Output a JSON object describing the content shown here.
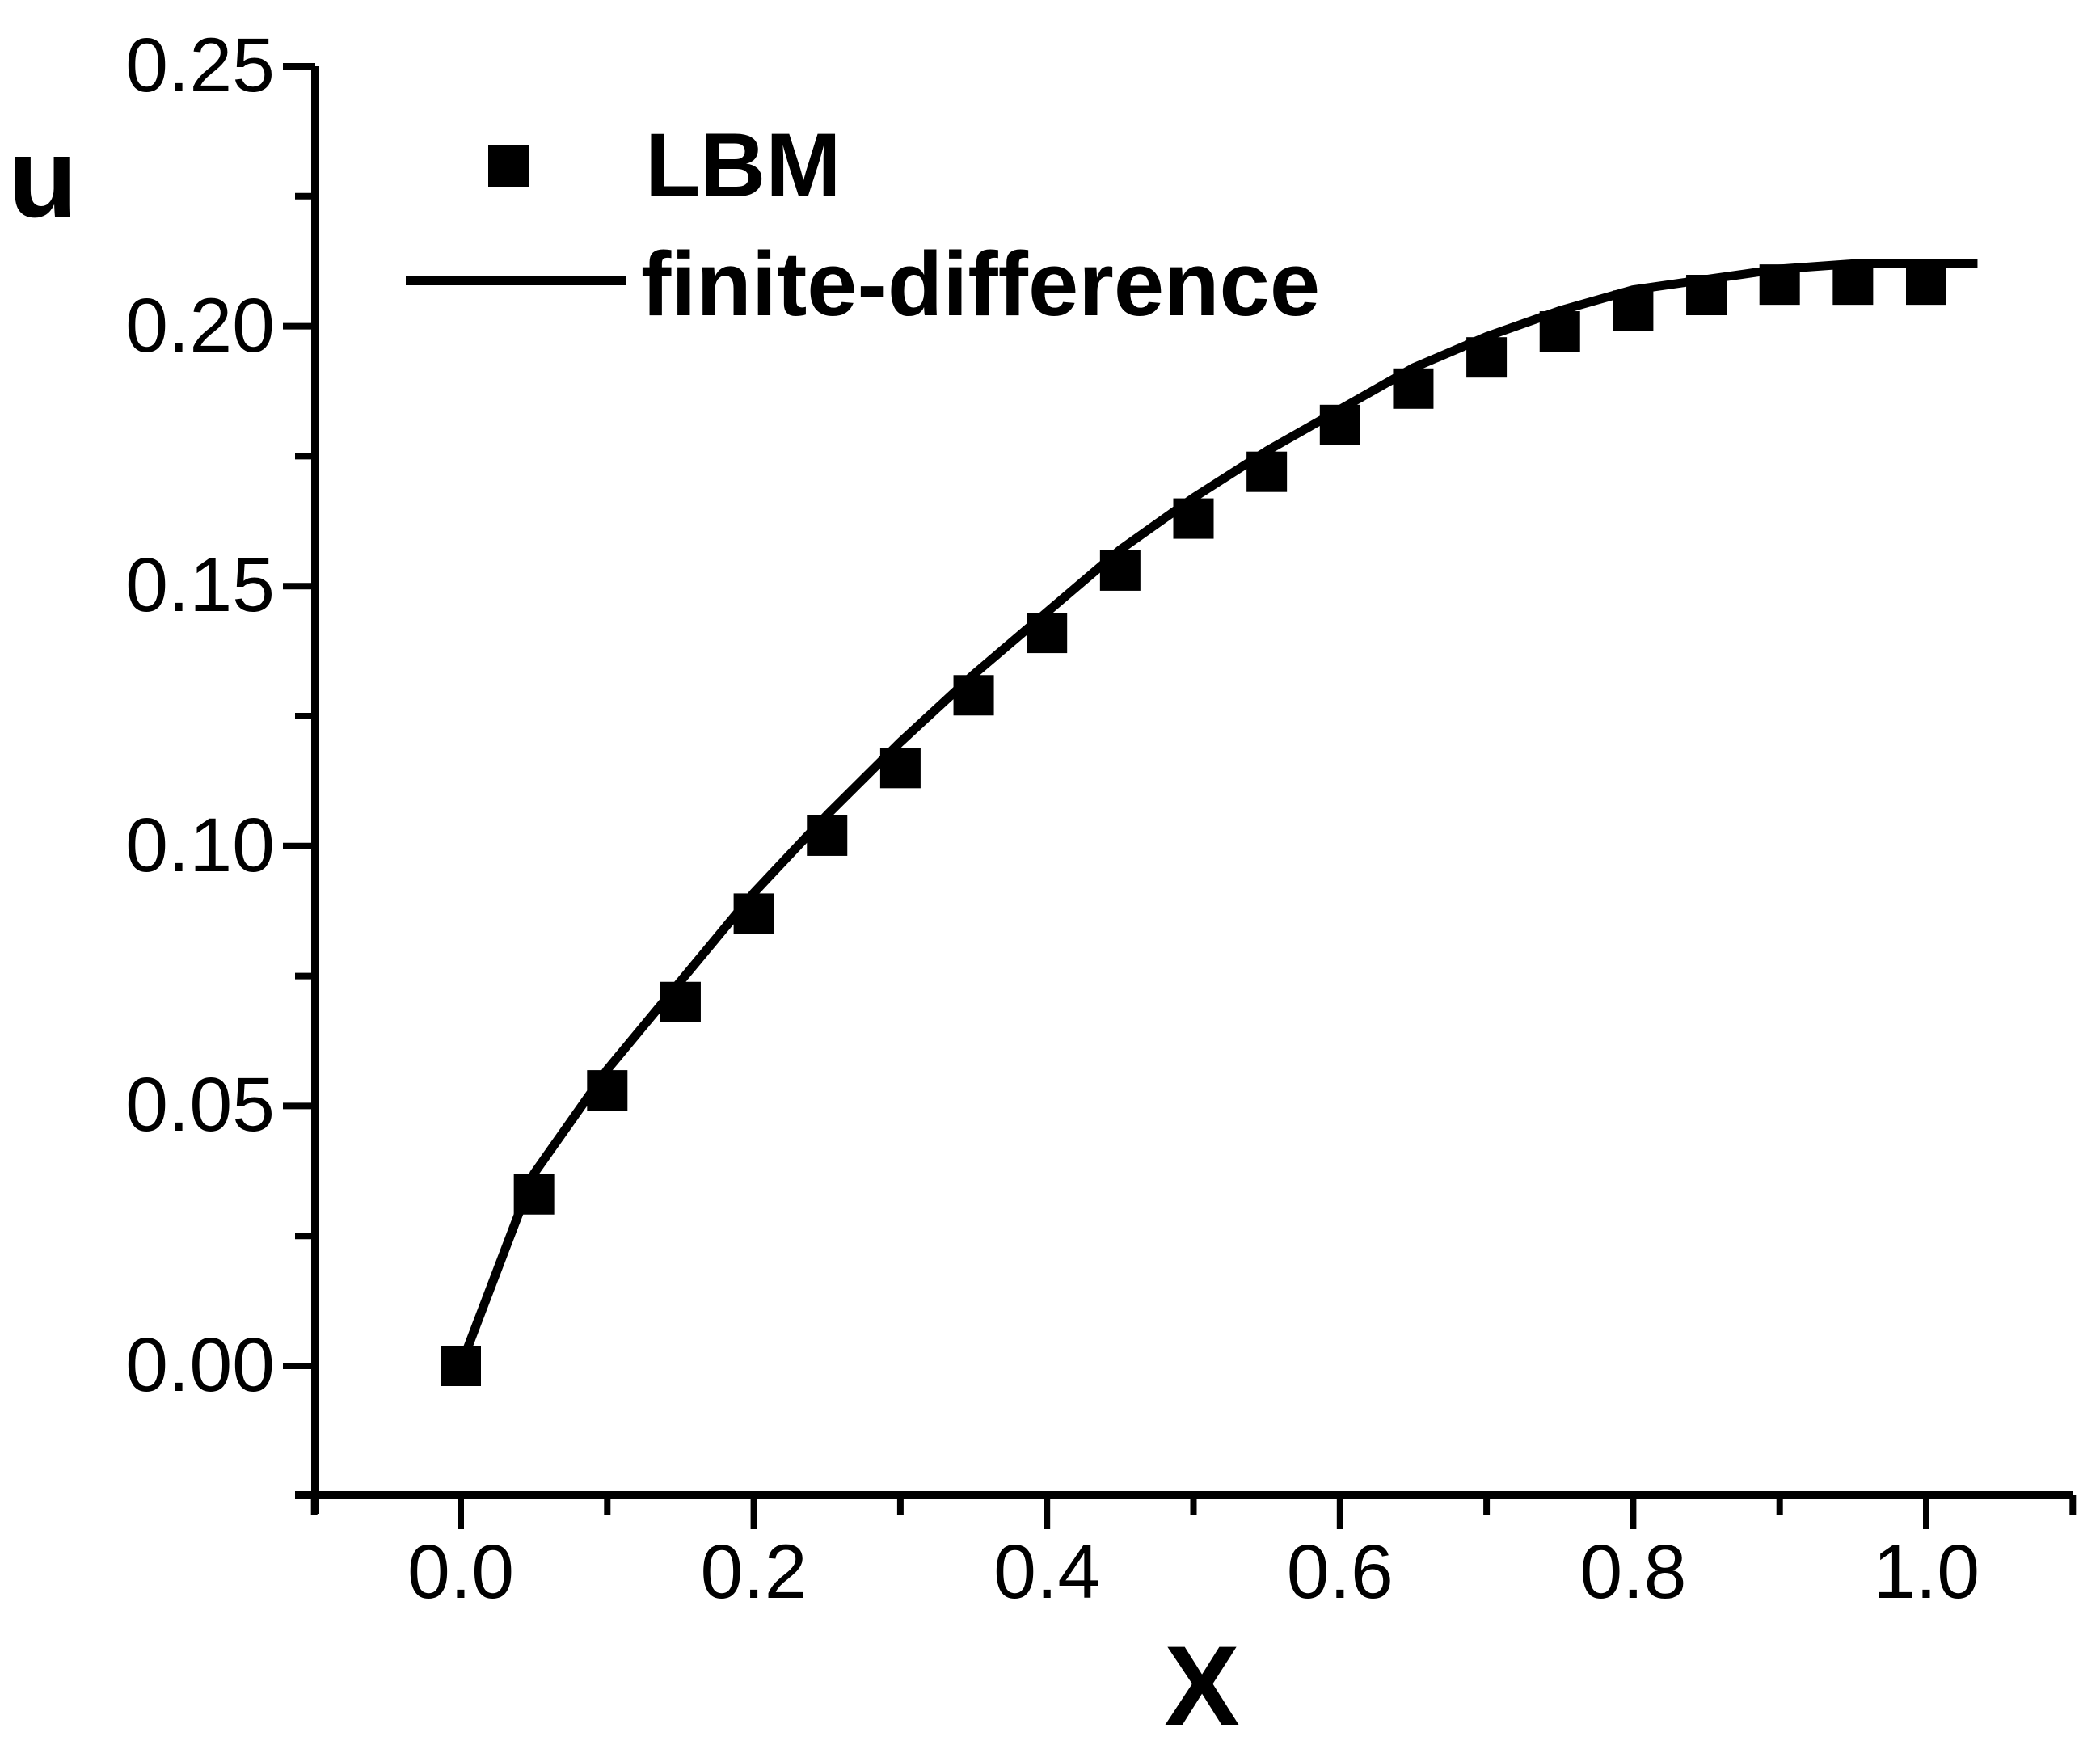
{
  "figure": {
    "background_color": "#ffffff",
    "ink_color": "#000000"
  },
  "axes": {
    "x": {
      "label": "X",
      "tick_labels": [
        "0.0",
        "0.2",
        "0.4",
        "0.6",
        "0.8",
        "1.0"
      ],
      "tick_values": [
        0.0,
        0.2,
        0.4,
        0.6,
        0.8,
        1.0
      ],
      "minor_tick_values": [
        -0.1,
        0.1,
        0.3,
        0.5,
        0.7,
        0.9,
        1.1
      ],
      "range": [
        -0.113,
        1.1
      ]
    },
    "y": {
      "label": "u",
      "tick_labels": [
        "0.00",
        "0.05",
        "0.10",
        "0.15",
        "0.20",
        "0.25"
      ],
      "tick_values": [
        0.0,
        0.05,
        0.1,
        0.15,
        0.2,
        0.25
      ],
      "minor_tick_values": [
        0.025,
        0.075,
        0.125,
        0.175,
        0.225
      ],
      "range": [
        -0.028,
        0.25
      ]
    }
  },
  "legend": {
    "position": "upper-left-inside",
    "items": [
      {
        "label": "LBM",
        "marker": "filled-square"
      },
      {
        "label": "finite-difference",
        "marker": "solid-line"
      }
    ]
  },
  "chart_data": {
    "type": "scatter",
    "title": "",
    "xlabel": "X",
    "ylabel": "u",
    "xlim": [
      -0.113,
      1.1
    ],
    "ylim": [
      -0.028,
      0.25
    ],
    "grid": false,
    "legend_position": "upper-left-inside",
    "series": [
      {
        "name": "LBM",
        "marker": "square",
        "line": false,
        "x": [
          0.0,
          0.05,
          0.1,
          0.15,
          0.2,
          0.25,
          0.3,
          0.35,
          0.4,
          0.45,
          0.5,
          0.55,
          0.6,
          0.65,
          0.7,
          0.75,
          0.8,
          0.85,
          0.9,
          0.95,
          1.0
        ],
        "y": [
          0.0,
          0.033,
          0.053,
          0.07,
          0.087,
          0.102,
          0.115,
          0.129,
          0.141,
          0.153,
          0.163,
          0.172,
          0.181,
          0.188,
          0.194,
          0.199,
          0.203,
          0.206,
          0.208,
          0.208,
          0.208
        ]
      },
      {
        "name": "finite-difference",
        "marker": "none",
        "line": true,
        "x": [
          0.0,
          0.05,
          0.1,
          0.15,
          0.2,
          0.25,
          0.3,
          0.35,
          0.4,
          0.45,
          0.5,
          0.55,
          0.6,
          0.65,
          0.7,
          0.75,
          0.8,
          0.85,
          0.9,
          0.95,
          1.0,
          1.035
        ],
        "y": [
          0.0,
          0.037,
          0.057,
          0.074,
          0.091,
          0.106,
          0.12,
          0.133,
          0.145,
          0.157,
          0.167,
          0.176,
          0.184,
          0.192,
          0.198,
          0.203,
          0.207,
          0.209,
          0.211,
          0.212,
          0.212,
          0.212
        ]
      }
    ]
  }
}
